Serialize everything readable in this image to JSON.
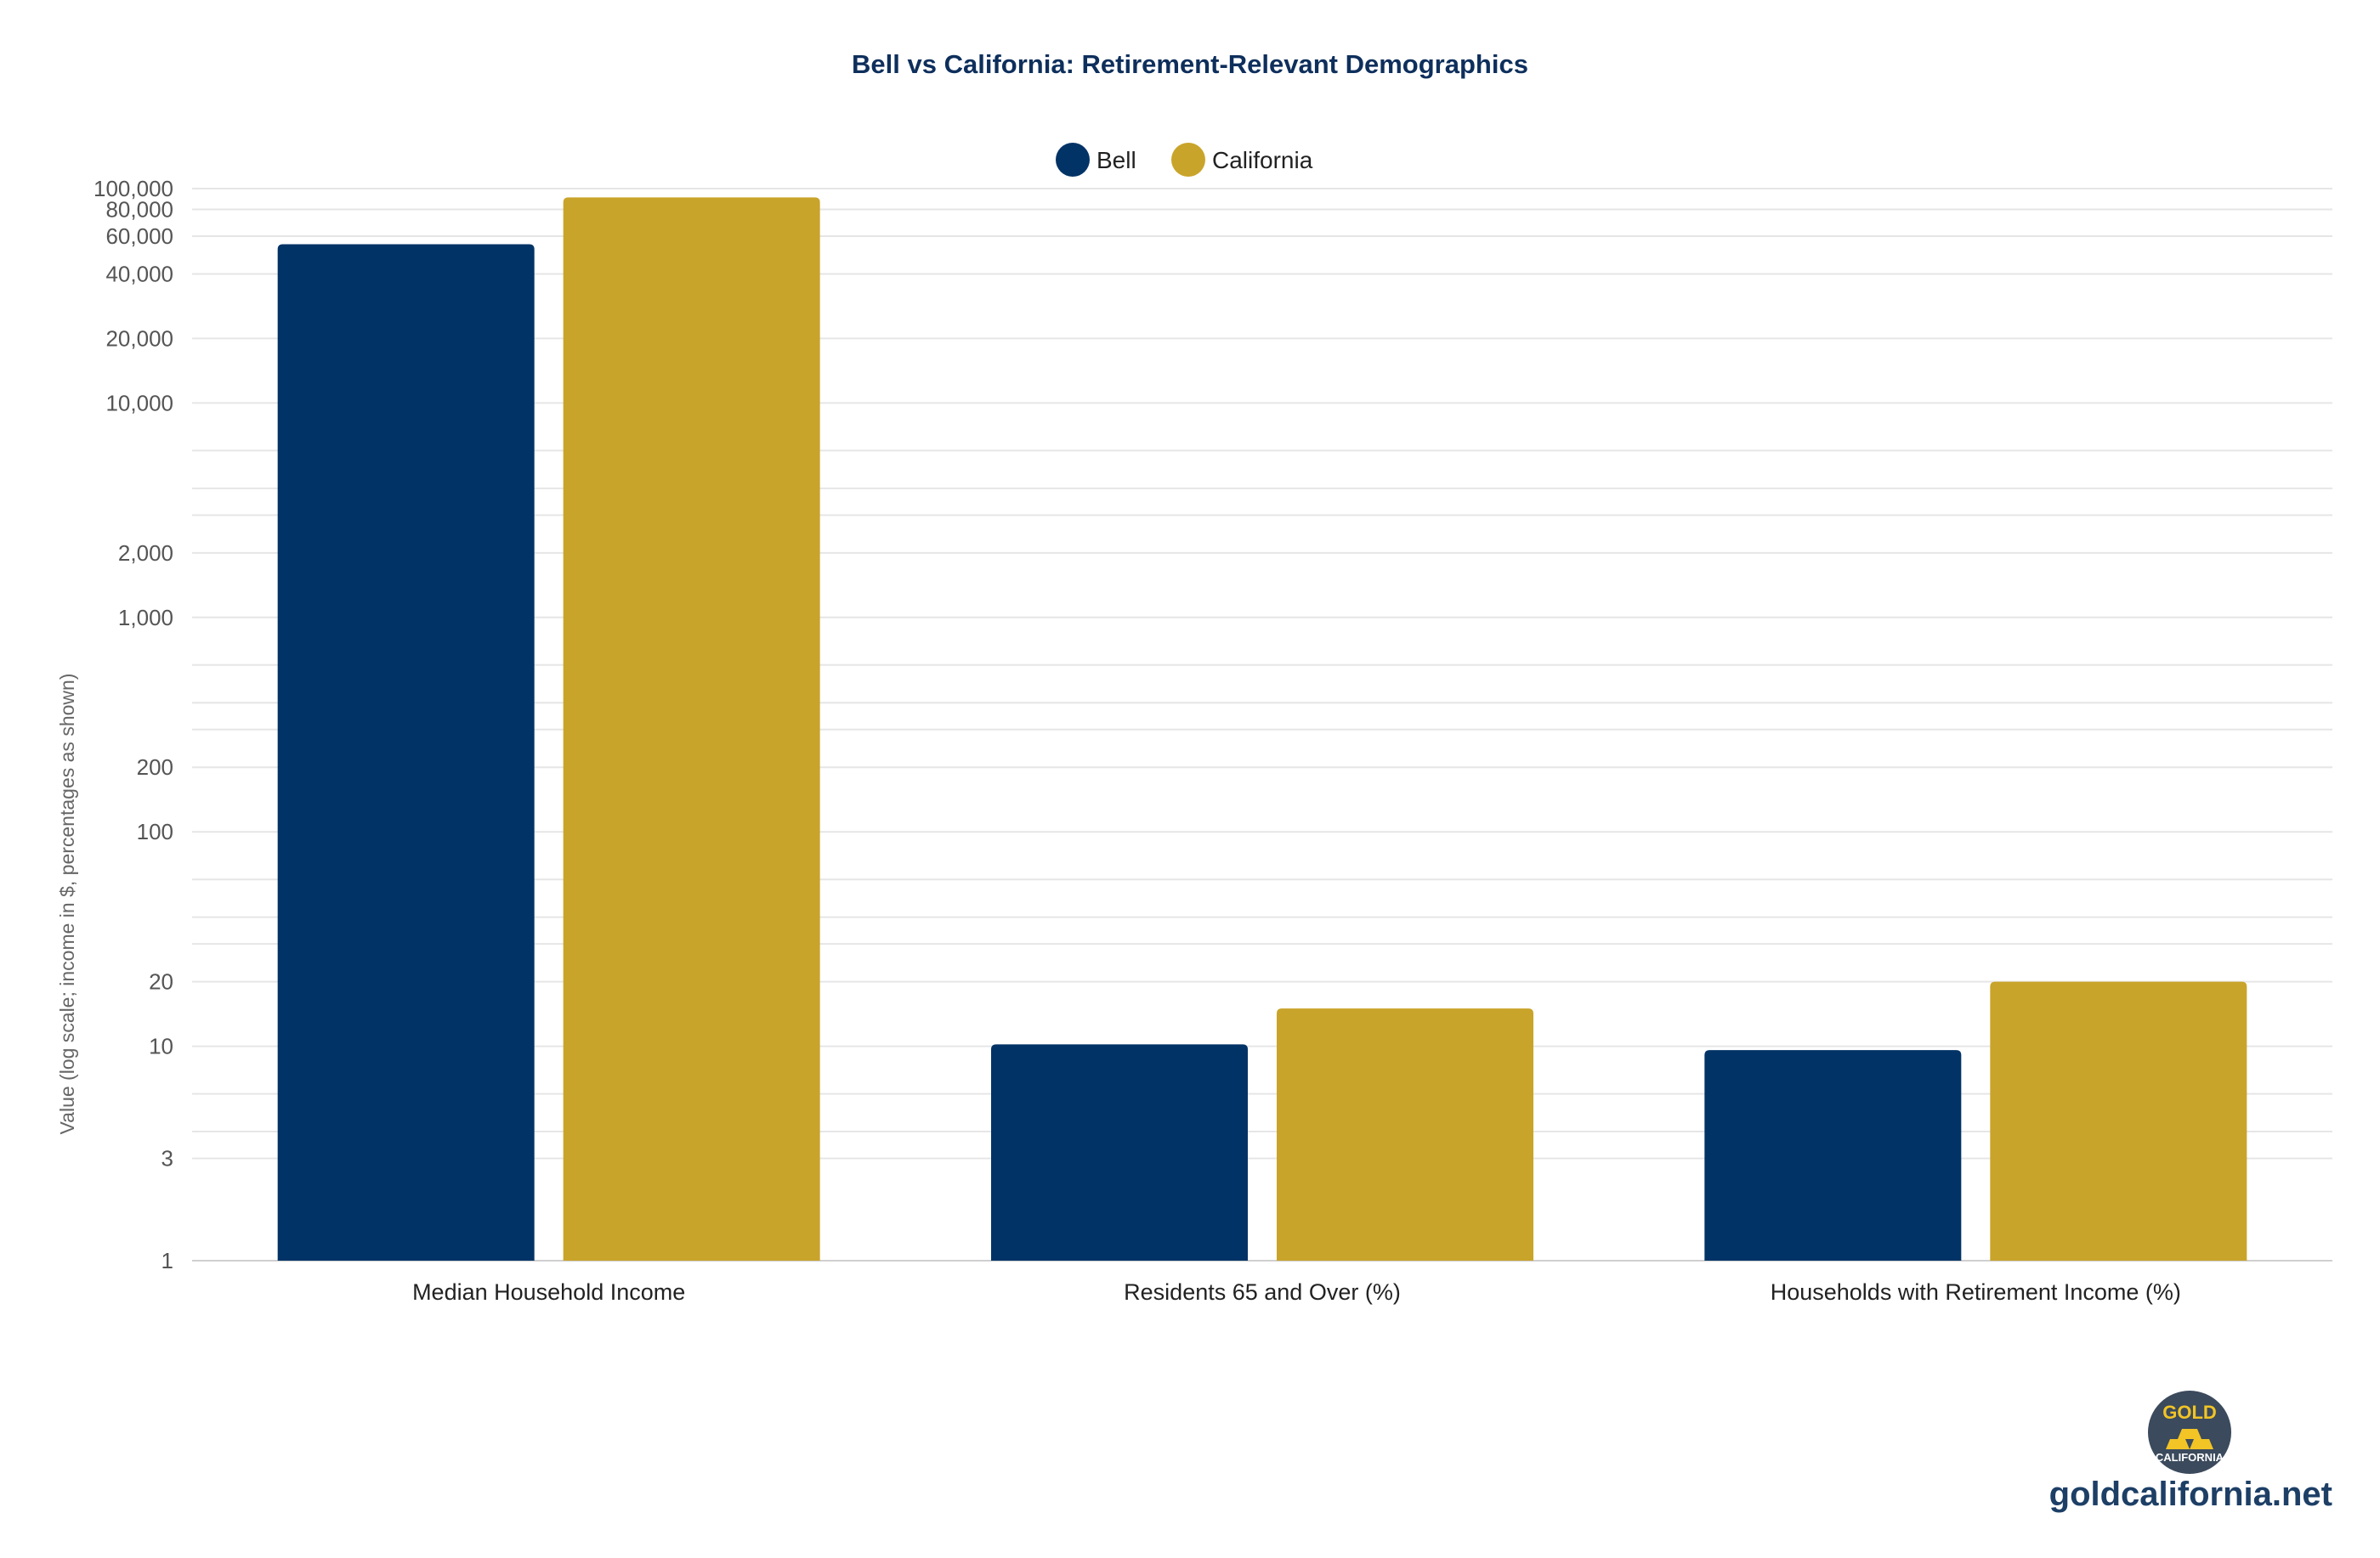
{
  "chart_data": {
    "type": "bar",
    "title": "Bell vs California: Retirement-Relevant Demographics",
    "ylabel": "Value (log scale; income in $, percentages as shown)",
    "xlabel": "",
    "yscale": "log",
    "ylim": [
      1,
      100000
    ],
    "yticks": [
      1,
      3,
      10,
      20,
      100,
      200,
      1000,
      2000,
      10000,
      20000,
      40000,
      60000,
      80000,
      100000
    ],
    "ytick_labels": [
      "1",
      "3",
      "10",
      "20",
      "100",
      "200",
      "1,000",
      "2,000",
      "10,000",
      "20,000",
      "40,000",
      "60,000",
      "80,000",
      "100,000"
    ],
    "minor_gridlines": [
      4,
      6,
      30,
      40,
      60,
      300,
      400,
      600,
      3000,
      4000,
      6000
    ],
    "grid": true,
    "legend_position": "top-center",
    "categories": [
      "Median Household Income",
      "Residents 65 and Over (%)",
      "Households with Retirement Income (%)"
    ],
    "series": [
      {
        "name": "Bell",
        "color": "#023366",
        "values": [
          55000,
          10.2,
          9.6
        ]
      },
      {
        "name": "California",
        "color": "#c9a42a",
        "values": [
          91000,
          15,
          20
        ]
      }
    ]
  },
  "branding": {
    "site": "goldcalifornia.net",
    "logo_top": "GOLD",
    "logo_bottom": "CALIFORNIA",
    "logo_icon": "gold-bars-icon",
    "logo_bg": "#3b4a5c",
    "logo_gold": "#f2c425"
  }
}
